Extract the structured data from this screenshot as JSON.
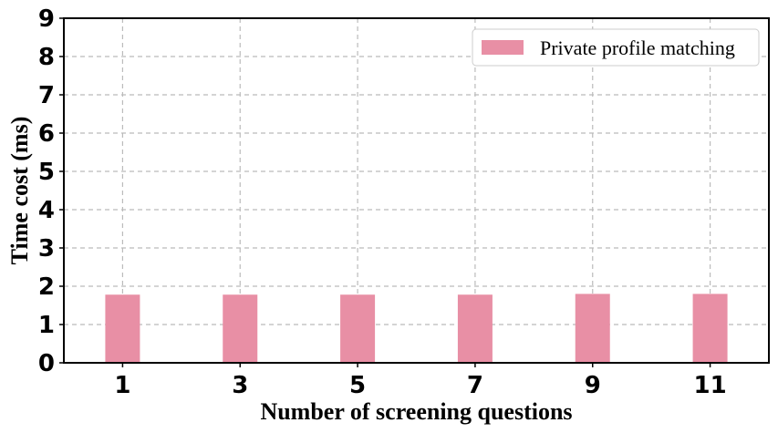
{
  "chart_data": {
    "type": "bar",
    "categories": [
      "1",
      "3",
      "5",
      "7",
      "9",
      "11"
    ],
    "series": [
      {
        "name": "Private profile matching",
        "values": [
          1.78,
          1.78,
          1.78,
          1.78,
          1.8,
          1.8
        ],
        "color": "#e88fa5"
      }
    ],
    "xlabel": "Number of screening questions",
    "ylabel": "Time cost (ms)",
    "ylim": [
      0,
      9
    ],
    "yticks": [
      "0",
      "1",
      "2",
      "3",
      "4",
      "5",
      "6",
      "7",
      "8",
      "9"
    ],
    "grid": true,
    "legend_position": "top-right"
  }
}
